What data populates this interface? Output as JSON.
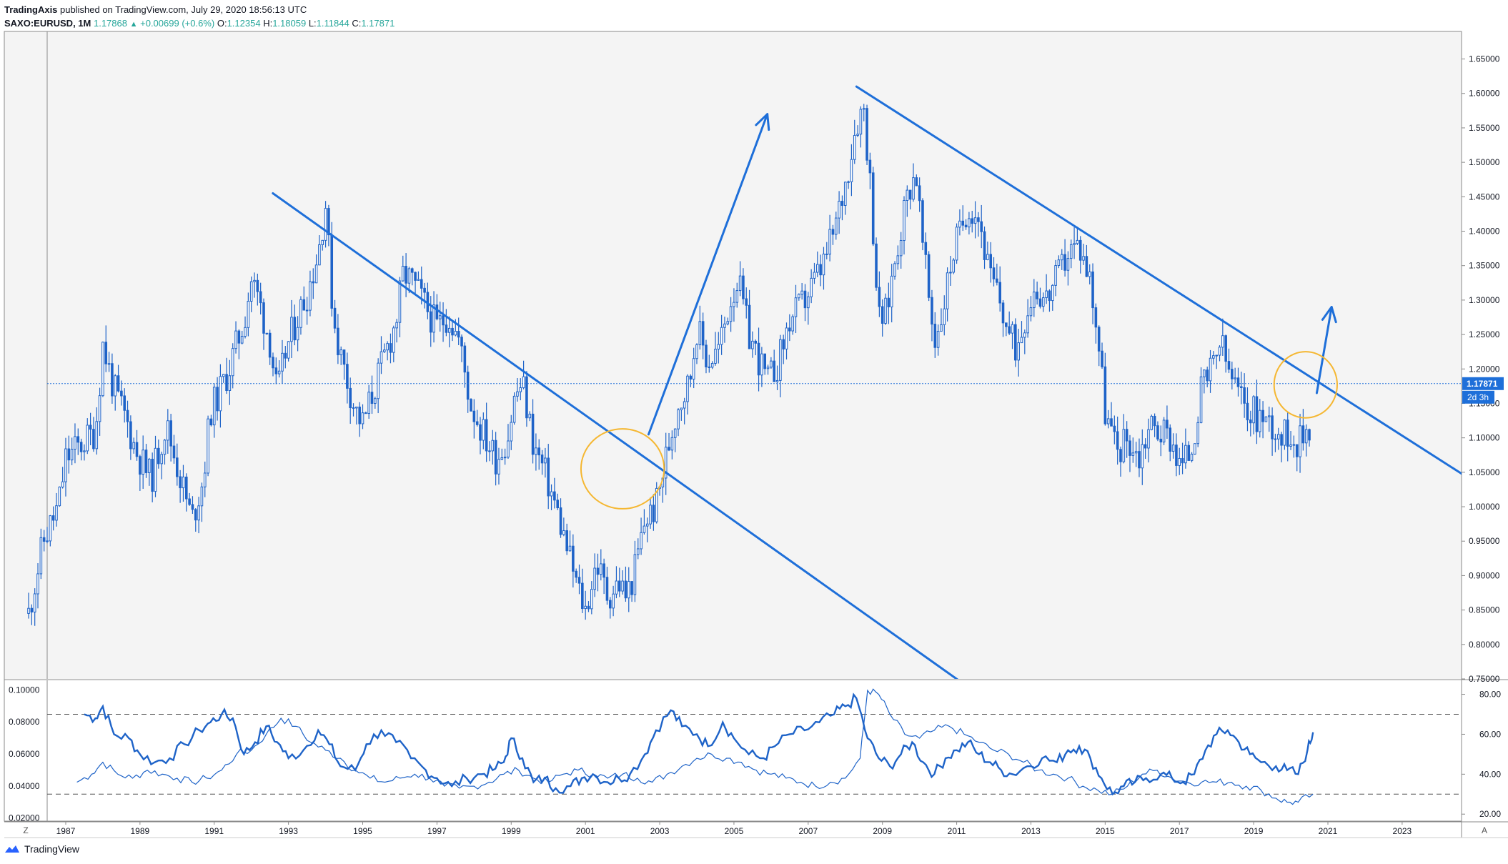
{
  "header": {
    "publisher": "TradingAxis",
    "published_text": "published on TradingView.com, July 29, 2020 18:56:13 UTC",
    "symbol": "SAXO:EURUSD, 1M",
    "last": "1.17868",
    "change_arrow": "▲",
    "change": "+0.00699 (+0.6%)",
    "open_label": "O:",
    "open": "1.12354",
    "high_label": "H:",
    "high": "1.18059",
    "low_label": "L:",
    "low": "1.11844",
    "close_label": "C:",
    "close": "1.17871"
  },
  "footer": {
    "brand": "TradingView",
    "logo_icon": "tradingview-logo-icon"
  },
  "corner_buttons": {
    "left": "Z",
    "right": "A"
  },
  "colors": {
    "candle": "#1e63c8",
    "trendline": "#1e6fd9",
    "circle": "#f5b731",
    "price_tag": "#1e6fd9",
    "indicator": "#1e63c8",
    "plot_bg": "#f4f4f4"
  },
  "chart_data": {
    "type": "candlestick",
    "symbol": "SAXO:EURUSD",
    "timeframe": "1M",
    "x_range": [
      1986.5,
      2024.6
    ],
    "ylim": [
      0.75,
      1.69
    ],
    "price_ticks": [
      "1.65000",
      "1.60000",
      "1.55000",
      "1.50000",
      "1.45000",
      "1.40000",
      "1.35000",
      "1.30000",
      "1.25000",
      "1.20000",
      "1.15000",
      "1.10000",
      "1.05000",
      "1.00000",
      "0.95000",
      "0.90000",
      "0.85000",
      "0.80000",
      "0.75000"
    ],
    "time_ticks": [
      "1987",
      "1989",
      "1991",
      "1993",
      "1995",
      "1997",
      "1999",
      "2001",
      "2003",
      "2005",
      "2007",
      "2009",
      "2011",
      "2013",
      "2015",
      "2017",
      "2019",
      "2021",
      "2023"
    ],
    "current_price": {
      "value": 1.17871,
      "label": "1.17871",
      "countdown": "2d 3h"
    },
    "price_path": [
      [
        1986.0,
        0.845
      ],
      [
        1986.4,
        0.95
      ],
      [
        1986.8,
        1.0
      ],
      [
        1987.0,
        1.07
      ],
      [
        1987.4,
        1.09
      ],
      [
        1987.8,
        1.11
      ],
      [
        1988.0,
        1.235
      ],
      [
        1988.3,
        1.17
      ],
      [
        1988.6,
        1.13
      ],
      [
        1988.9,
        1.08
      ],
      [
        1989.3,
        1.04
      ],
      [
        1989.7,
        1.12
      ],
      [
        1990.0,
        1.06
      ],
      [
        1990.4,
        0.98
      ],
      [
        1990.7,
        1.04
      ],
      [
        1990.9,
        1.14
      ],
      [
        1991.1,
        1.16
      ],
      [
        1991.4,
        1.2
      ],
      [
        1991.8,
        1.27
      ],
      [
        1992.0,
        1.33
      ],
      [
        1992.2,
        1.3
      ],
      [
        1992.5,
        1.24
      ],
      [
        1992.7,
        1.16
      ],
      [
        1992.9,
        1.22
      ],
      [
        1993.2,
        1.27
      ],
      [
        1993.5,
        1.31
      ],
      [
        1993.8,
        1.37
      ],
      [
        1994.0,
        1.44
      ],
      [
        1994.2,
        1.28
      ],
      [
        1994.4,
        1.22
      ],
      [
        1994.6,
        1.18
      ],
      [
        1994.8,
        1.14
      ],
      [
        1995.0,
        1.12
      ],
      [
        1995.3,
        1.17
      ],
      [
        1995.6,
        1.22
      ],
      [
        1995.9,
        1.27
      ],
      [
        1996.1,
        1.34
      ],
      [
        1996.4,
        1.32
      ],
      [
        1996.7,
        1.29
      ],
      [
        1997.0,
        1.26
      ],
      [
        1997.3,
        1.28
      ],
      [
        1997.6,
        1.24
      ],
      [
        1997.9,
        1.15
      ],
      [
        1998.3,
        1.1
      ],
      [
        1998.6,
        1.07
      ],
      [
        1998.9,
        1.1
      ],
      [
        1999.1,
        1.16
      ],
      [
        1999.3,
        1.18
      ],
      [
        1999.6,
        1.09
      ],
      [
        1999.9,
        1.05
      ],
      [
        2000.2,
        1.0
      ],
      [
        2000.5,
        0.94
      ],
      [
        2000.8,
        0.88
      ],
      [
        2001.0,
        0.85
      ],
      [
        2001.3,
        0.92
      ],
      [
        2001.6,
        0.87
      ],
      [
        2001.9,
        0.89
      ],
      [
        2002.1,
        0.87
      ],
      [
        2002.3,
        0.9
      ],
      [
        2002.6,
        0.98
      ],
      [
        2002.9,
        1.0
      ],
      [
        2003.2,
        1.08
      ],
      [
        2003.5,
        1.15
      ],
      [
        2003.8,
        1.18
      ],
      [
        2004.0,
        1.26
      ],
      [
        2004.3,
        1.21
      ],
      [
        2004.6,
        1.23
      ],
      [
        2004.9,
        1.3
      ],
      [
        2005.1,
        1.33
      ],
      [
        2005.4,
        1.25
      ],
      [
        2005.7,
        1.21
      ],
      [
        2005.9,
        1.18
      ],
      [
        2006.2,
        1.21
      ],
      [
        2006.5,
        1.27
      ],
      [
        2006.8,
        1.29
      ],
      [
        2007.1,
        1.32
      ],
      [
        2007.4,
        1.35
      ],
      [
        2007.7,
        1.4
      ],
      [
        2008.0,
        1.47
      ],
      [
        2008.3,
        1.56
      ],
      [
        2008.5,
        1.58
      ],
      [
        2008.7,
        1.45
      ],
      [
        2008.9,
        1.27
      ],
      [
        2009.1,
        1.28
      ],
      [
        2009.4,
        1.38
      ],
      [
        2009.7,
        1.46
      ],
      [
        2009.9,
        1.49
      ],
      [
        2010.1,
        1.37
      ],
      [
        2010.4,
        1.24
      ],
      [
        2010.6,
        1.28
      ],
      [
        2010.9,
        1.37
      ],
      [
        2011.1,
        1.4
      ],
      [
        2011.3,
        1.44
      ],
      [
        2011.6,
        1.42
      ],
      [
        2011.9,
        1.33
      ],
      [
        2012.1,
        1.31
      ],
      [
        2012.4,
        1.25
      ],
      [
        2012.6,
        1.23
      ],
      [
        2012.9,
        1.29
      ],
      [
        2013.1,
        1.32
      ],
      [
        2013.4,
        1.3
      ],
      [
        2013.7,
        1.33
      ],
      [
        2014.0,
        1.37
      ],
      [
        2014.3,
        1.38
      ],
      [
        2014.6,
        1.33
      ],
      [
        2014.8,
        1.25
      ],
      [
        2015.0,
        1.14
      ],
      [
        2015.3,
        1.08
      ],
      [
        2015.6,
        1.1
      ],
      [
        2015.9,
        1.07
      ],
      [
        2016.2,
        1.12
      ],
      [
        2016.5,
        1.11
      ],
      [
        2016.8,
        1.1
      ],
      [
        2017.0,
        1.06
      ],
      [
        2017.3,
        1.08
      ],
      [
        2017.6,
        1.17
      ],
      [
        2017.9,
        1.2
      ],
      [
        2018.1,
        1.24
      ],
      [
        2018.3,
        1.2
      ],
      [
        2018.6,
        1.16
      ],
      [
        2018.9,
        1.14
      ],
      [
        2019.2,
        1.13
      ],
      [
        2019.5,
        1.12
      ],
      [
        2019.8,
        1.1
      ],
      [
        2020.0,
        1.11
      ],
      [
        2020.2,
        1.09
      ],
      [
        2020.5,
        1.12
      ],
      [
        2020.58,
        1.179
      ]
    ],
    "trendlines": [
      {
        "name": "downtrend-1",
        "points": [
          [
            1992.58,
            1.455
          ],
          [
            2011.05,
            0.748
          ]
        ]
      },
      {
        "name": "downtrend-2",
        "points": [
          [
            2008.3,
            1.61
          ],
          [
            2024.6,
            1.048
          ]
        ]
      }
    ],
    "arrows": [
      {
        "name": "breakout-arrow-2003",
        "points": [
          [
            2002.7,
            1.105
          ],
          [
            2005.9,
            1.57
          ]
        ]
      },
      {
        "name": "breakout-arrow-2020",
        "points": [
          [
            2020.7,
            1.165
          ],
          [
            2021.1,
            1.29
          ]
        ]
      }
    ],
    "circles": [
      {
        "name": "breakout-circle-2003",
        "center": [
          2002.0,
          1.055
        ],
        "radius_x_years": 1.12,
        "radius_y": 0.058
      },
      {
        "name": "breakout-circle-2020",
        "center": [
          2020.4,
          1.177
        ],
        "radius_x_years": 0.85,
        "radius_y": 0.048
      }
    ],
    "indicator": {
      "left_ticks": [
        "0.10000",
        "0.08000",
        "0.06000",
        "0.04000",
        "0.02000"
      ],
      "left_range": [
        0.018,
        0.106
      ],
      "right_ticks": [
        "80.00",
        "60.00",
        "40.00",
        "20.00"
      ],
      "right_range": [
        16.5,
        87
      ],
      "levels": [
        70,
        30
      ],
      "thick_series": [
        [
          1987.5,
          70
        ],
        [
          1987.8,
          68
        ],
        [
          1988.0,
          74
        ],
        [
          1988.3,
          60
        ],
        [
          1988.7,
          58
        ],
        [
          1989.0,
          50
        ],
        [
          1989.4,
          46
        ],
        [
          1989.8,
          48
        ],
        [
          1990.2,
          55
        ],
        [
          1990.6,
          62
        ],
        [
          1990.9,
          66
        ],
        [
          1991.2,
          70
        ],
        [
          1991.5,
          68
        ],
        [
          1991.8,
          50
        ],
        [
          1992.1,
          56
        ],
        [
          1992.4,
          64
        ],
        [
          1992.7,
          56
        ],
        [
          1993.0,
          48
        ],
        [
          1993.4,
          52
        ],
        [
          1993.8,
          62
        ],
        [
          1994.1,
          55
        ],
        [
          1994.4,
          44
        ],
        [
          1994.8,
          42
        ],
        [
          1995.1,
          55
        ],
        [
          1995.5,
          62
        ],
        [
          1995.9,
          56
        ],
        [
          1996.3,
          48
        ],
        [
          1996.7,
          42
        ],
        [
          1997.0,
          38
        ],
        [
          1997.4,
          34
        ],
        [
          1997.8,
          38
        ],
        [
          1998.2,
          40
        ],
        [
          1998.5,
          42
        ],
        [
          1998.8,
          46
        ],
        [
          1999.0,
          58
        ],
        [
          1999.3,
          48
        ],
        [
          1999.6,
          36
        ],
        [
          1999.9,
          38
        ],
        [
          2000.2,
          33
        ],
        [
          2000.6,
          34
        ],
        [
          2000.9,
          38
        ],
        [
          2001.2,
          40
        ],
        [
          2001.6,
          36
        ],
        [
          2001.9,
          38
        ],
        [
          2002.2,
          40
        ],
        [
          2002.6,
          50
        ],
        [
          2002.9,
          62
        ],
        [
          2003.3,
          72
        ],
        [
          2003.6,
          64
        ],
        [
          2004.0,
          60
        ],
        [
          2004.3,
          54
        ],
        [
          2004.7,
          66
        ],
        [
          2005.0,
          58
        ],
        [
          2005.4,
          50
        ],
        [
          2005.8,
          48
        ],
        [
          2006.1,
          54
        ],
        [
          2006.5,
          60
        ],
        [
          2006.9,
          62
        ],
        [
          2007.3,
          66
        ],
        [
          2007.7,
          70
        ],
        [
          2008.0,
          74
        ],
        [
          2008.3,
          78
        ],
        [
          2008.6,
          58
        ],
        [
          2008.9,
          48
        ],
        [
          2009.2,
          44
        ],
        [
          2009.5,
          50
        ],
        [
          2009.8,
          56
        ],
        [
          2010.1,
          46
        ],
        [
          2010.4,
          40
        ],
        [
          2010.7,
          48
        ],
        [
          2011.0,
          52
        ],
        [
          2011.3,
          56
        ],
        [
          2011.6,
          50
        ],
        [
          2011.9,
          46
        ],
        [
          2012.2,
          42
        ],
        [
          2012.5,
          40
        ],
        [
          2012.9,
          44
        ],
        [
          2013.3,
          48
        ],
        [
          2013.7,
          46
        ],
        [
          2014.0,
          52
        ],
        [
          2014.3,
          54
        ],
        [
          2014.6,
          48
        ],
        [
          2014.9,
          38
        ],
        [
          2015.2,
          30
        ],
        [
          2015.5,
          34
        ],
        [
          2015.8,
          36
        ],
        [
          2016.1,
          38
        ],
        [
          2016.5,
          40
        ],
        [
          2016.8,
          38
        ],
        [
          2017.1,
          36
        ],
        [
          2017.4,
          40
        ],
        [
          2017.7,
          52
        ],
        [
          2018.0,
          60
        ],
        [
          2018.3,
          62
        ],
        [
          2018.6,
          56
        ],
        [
          2018.9,
          50
        ],
        [
          2019.2,
          46
        ],
        [
          2019.6,
          44
        ],
        [
          2019.9,
          42
        ],
        [
          2020.2,
          40
        ],
        [
          2020.45,
          52
        ],
        [
          2020.6,
          61
        ]
      ],
      "thin_series": [
        [
          1987.3,
          36
        ],
        [
          1987.7,
          40
        ],
        [
          1988.0,
          46
        ],
        [
          1988.4,
          40
        ],
        [
          1988.8,
          38
        ],
        [
          1989.2,
          42
        ],
        [
          1989.6,
          40
        ],
        [
          1990.0,
          38
        ],
        [
          1990.4,
          36
        ],
        [
          1990.8,
          38
        ],
        [
          1991.2,
          42
        ],
        [
          1991.6,
          50
        ],
        [
          1992.0,
          52
        ],
        [
          1992.4,
          60
        ],
        [
          1992.8,
          68
        ],
        [
          1993.2,
          64
        ],
        [
          1993.6,
          56
        ],
        [
          1994.0,
          52
        ],
        [
          1994.4,
          48
        ],
        [
          1994.8,
          42
        ],
        [
          1995.2,
          38
        ],
        [
          1995.6,
          36
        ],
        [
          1996.0,
          38
        ],
        [
          1996.4,
          40
        ],
        [
          1996.8,
          38
        ],
        [
          1997.2,
          34
        ],
        [
          1997.6,
          33
        ],
        [
          1998.0,
          34
        ],
        [
          1998.4,
          36
        ],
        [
          1998.8,
          40
        ],
        [
          1999.2,
          42
        ],
        [
          1999.6,
          38
        ],
        [
          2000.0,
          36
        ],
        [
          2000.4,
          40
        ],
        [
          2000.8,
          42
        ],
        [
          2001.2,
          40
        ],
        [
          2001.6,
          38
        ],
        [
          2002.0,
          40
        ],
        [
          2002.4,
          38
        ],
        [
          2002.8,
          36
        ],
        [
          2003.2,
          40
        ],
        [
          2003.6,
          44
        ],
        [
          2004.0,
          48
        ],
        [
          2004.4,
          50
        ],
        [
          2004.8,
          48
        ],
        [
          2005.2,
          46
        ],
        [
          2005.6,
          42
        ],
        [
          2006.0,
          40
        ],
        [
          2006.4,
          38
        ],
        [
          2006.8,
          36
        ],
        [
          2007.2,
          34
        ],
        [
          2007.6,
          36
        ],
        [
          2008.0,
          38
        ],
        [
          2008.4,
          48
        ],
        [
          2008.6,
          82
        ],
        [
          2008.9,
          80
        ],
        [
          2009.2,
          70
        ],
        [
          2009.6,
          60
        ],
        [
          2010.0,
          58
        ],
        [
          2010.4,
          62
        ],
        [
          2010.8,
          64
        ],
        [
          2011.2,
          60
        ],
        [
          2011.6,
          56
        ],
        [
          2012.0,
          52
        ],
        [
          2012.4,
          50
        ],
        [
          2012.8,
          46
        ],
        [
          2013.2,
          42
        ],
        [
          2013.6,
          40
        ],
        [
          2014.0,
          38
        ],
        [
          2014.4,
          34
        ],
        [
          2014.8,
          32
        ],
        [
          2015.2,
          30
        ],
        [
          2015.6,
          34
        ],
        [
          2016.0,
          40
        ],
        [
          2016.4,
          42
        ],
        [
          2016.8,
          38
        ],
        [
          2017.2,
          36
        ],
        [
          2017.6,
          36
        ],
        [
          2018.0,
          36
        ],
        [
          2018.4,
          36
        ],
        [
          2018.8,
          34
        ],
        [
          2019.2,
          32
        ],
        [
          2019.6,
          28
        ],
        [
          2019.9,
          26
        ],
        [
          2020.2,
          26
        ],
        [
          2020.6,
          30
        ]
      ]
    }
  }
}
